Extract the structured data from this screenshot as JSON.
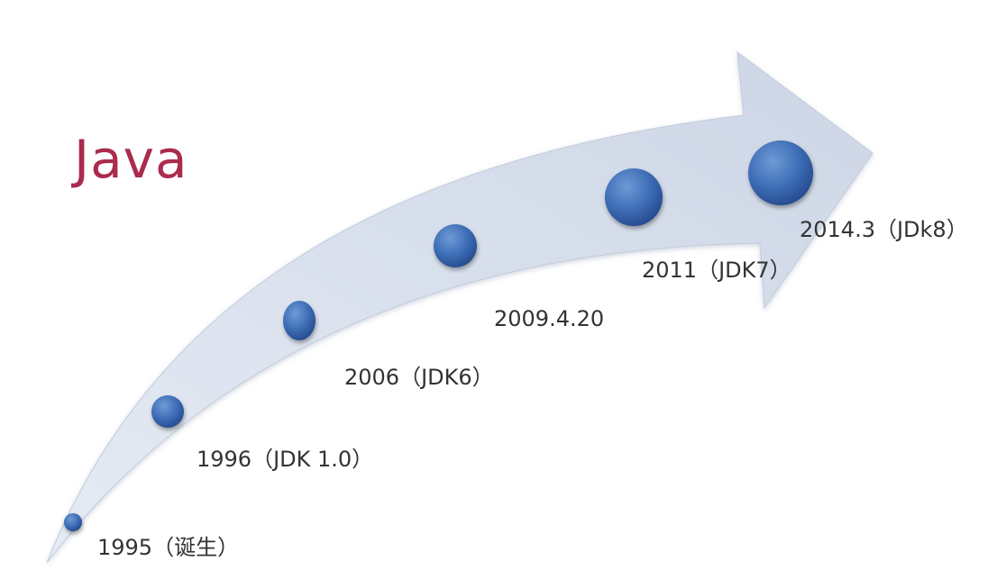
{
  "title": "Java",
  "milestones": [
    {
      "label": "1995（诞生）"
    },
    {
      "label": "1996（JDK 1.0）"
    },
    {
      "label": "2006（JDK6）"
    },
    {
      "label": "2009.4.20"
    },
    {
      "label": "2011（JDK7）"
    },
    {
      "label": "2014.3（JDk8）"
    }
  ],
  "colors": {
    "title": "#ab2b4e",
    "arrow_fill": "#dde4ef",
    "dot": "#3a6cb5",
    "label": "#333333"
  }
}
